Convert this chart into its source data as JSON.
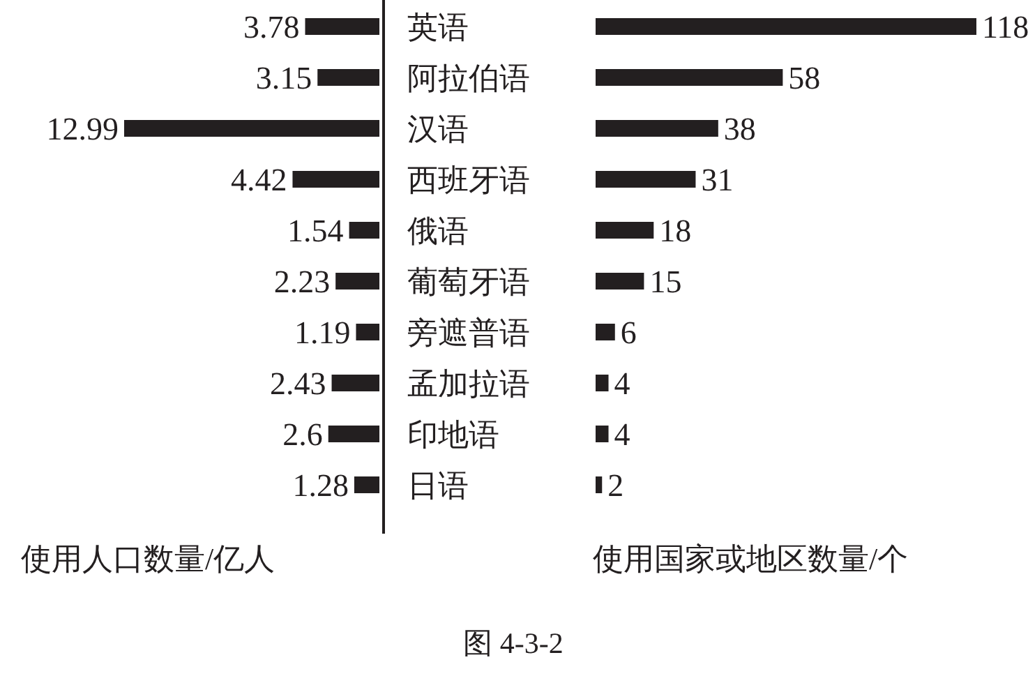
{
  "chart_data": [
    {
      "type": "bar",
      "orientation": "horizontal",
      "categories": [
        "英语",
        "阿拉伯语",
        "汉语",
        "西班牙语",
        "俄语",
        "葡萄牙语",
        "旁遮普语",
        "孟加拉语",
        "印地语",
        "日语"
      ],
      "values": [
        3.78,
        3.15,
        12.99,
        4.42,
        1.54,
        2.23,
        1.19,
        2.43,
        2.6,
        1.28
      ],
      "color": "#231f20",
      "data_labels": true,
      "xlabel": "使用人口数量/亿人"
    },
    {
      "type": "bar",
      "orientation": "horizontal",
      "categories": [
        null,
        null,
        null,
        null,
        null,
        null,
        null,
        null,
        null,
        null
      ],
      "values": [
        118,
        58,
        38,
        31,
        18,
        15,
        6,
        4,
        4,
        2
      ],
      "color": "#231f20",
      "data_labels": true,
      "xlabel": "使用国家或地区数量/个",
      "annotations": [
        "图 4-3-2"
      ]
    }
  ]
}
